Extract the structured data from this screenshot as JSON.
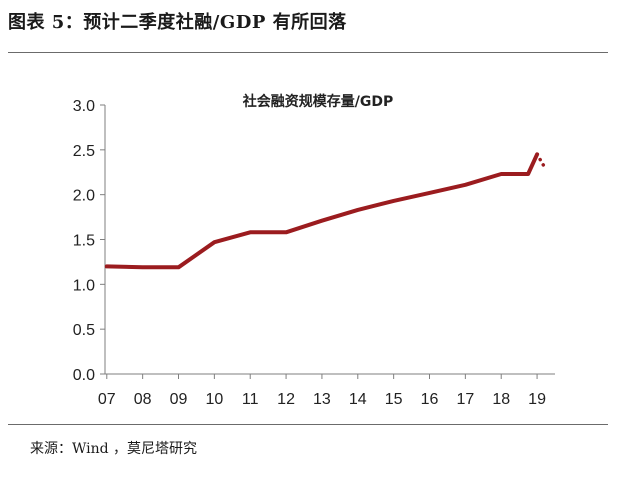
{
  "figure_title": "图表 5：预计二季度社融/GDP 有所回落",
  "source": "来源：Wind ，莫尼塔研究",
  "colors": {
    "line": "#9b1c1f",
    "axis": "#7f7f7f"
  },
  "chart_data": {
    "type": "line",
    "title": "社会融资规模存量/GDP",
    "xlabel": "",
    "ylabel": "",
    "x_ticks": [
      "07",
      "08",
      "09",
      "10",
      "11",
      "12",
      "13",
      "14",
      "15",
      "16",
      "17",
      "18",
      "19"
    ],
    "y_ticks": [
      "0.0",
      "0.5",
      "1.0",
      "1.5",
      "2.0",
      "2.5",
      "3.0"
    ],
    "ylim": [
      0,
      3
    ],
    "grid": false,
    "series": [
      {
        "style": "solid",
        "x": [
          2007.0,
          2008.0,
          2009.0,
          2010.0,
          2011.0,
          2012.0,
          2013.0,
          2014.0,
          2015.0,
          2016.0,
          2017.0,
          2018.0,
          2018.75,
          2019.0
        ],
        "y": [
          1.2,
          1.19,
          1.19,
          1.47,
          1.58,
          1.58,
          1.71,
          1.83,
          1.93,
          2.02,
          2.11,
          2.23,
          2.23,
          2.45
        ]
      },
      {
        "style": "dotted",
        "x": [
          2019.0,
          2019.25
        ],
        "y": [
          2.45,
          2.28
        ]
      }
    ]
  }
}
